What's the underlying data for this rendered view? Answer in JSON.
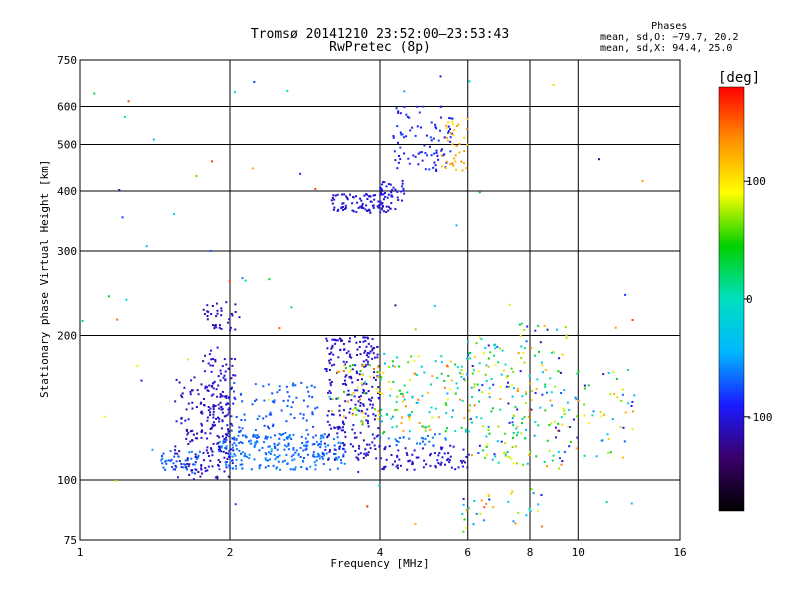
{
  "chart_data": {
    "type": "scatter",
    "title": "Tromsø 20141210 23:52:00–23:53:43",
    "subtitle": "RwPretec (8p)",
    "xlabel": "Frequency [MHz]",
    "ylabel": "Stationary phase Virtual Height [km]",
    "x_scale": "log",
    "y_scale": "log",
    "xlim": [
      1,
      16
    ],
    "ylim": [
      75,
      750
    ],
    "x_ticks": [
      1,
      2,
      4,
      6,
      8,
      10,
      16
    ],
    "y_ticks": [
      75,
      100,
      200,
      300,
      400,
      500,
      600,
      750
    ],
    "grid": true,
    "stats": {
      "header": "Phases",
      "line1": "mean, sd,O: −79.7, 20.2",
      "line2": "mean, sd,X:  94.4, 25.0"
    },
    "colorbar": {
      "label": "[deg]",
      "ticks": [
        100,
        0,
        -100
      ],
      "range": [
        -180,
        180
      ],
      "colors": [
        "#000000",
        "#3a006a",
        "#1a1aff",
        "#00b7ff",
        "#00e0c0",
        "#00d000",
        "#ffff00",
        "#ff9000",
        "#ff0000"
      ]
    },
    "clusters": [
      {
        "x": [
          1.55,
          2.0
        ],
        "y": [
          100,
          165
        ],
        "n": 160,
        "phase": [
          -120,
          -100
        ]
      },
      {
        "x": [
          1.75,
          2.05
        ],
        "y": [
          105,
          190
        ],
        "n": 110,
        "phase": [
          -110,
          -95
        ]
      },
      {
        "x": [
          1.45,
          1.75
        ],
        "y": [
          103,
          115
        ],
        "n": 40,
        "phase": [
          -80,
          -60
        ]
      },
      {
        "x": [
          1.9,
          3.4
        ],
        "y": [
          105,
          125
        ],
        "n": 220,
        "phase": [
          -75,
          -55
        ]
      },
      {
        "x": [
          2.0,
          3.0
        ],
        "y": [
          115,
          160
        ],
        "n": 110,
        "phase": [
          -80,
          -65
        ]
      },
      {
        "x": [
          3.1,
          4.0
        ],
        "y": [
          110,
          200
        ],
        "n": 260,
        "phase": [
          -115,
          -95
        ]
      },
      {
        "x": [
          3.2,
          4.0
        ],
        "y": [
          130,
          175
        ],
        "n": 50,
        "phase": [
          40,
          150
        ]
      },
      {
        "x": [
          1.75,
          2.1
        ],
        "y": [
          205,
          235
        ],
        "n": 35,
        "phase": [
          -120,
          -100
        ]
      },
      {
        "x": [
          3.2,
          4.3
        ],
        "y": [
          360,
          395
        ],
        "n": 90,
        "phase": [
          -110,
          -95
        ]
      },
      {
        "x": [
          4.0,
          4.5
        ],
        "y": [
          380,
          420
        ],
        "n": 35,
        "phase": [
          -105,
          -90
        ]
      },
      {
        "x": [
          4.2,
          5.6
        ],
        "y": [
          440,
          600
        ],
        "n": 90,
        "phase": [
          -100,
          -80
        ]
      },
      {
        "x": [
          5.3,
          6.0
        ],
        "y": [
          440,
          560
        ],
        "n": 35,
        "phase": [
          100,
          140
        ]
      },
      {
        "x": [
          4.0,
          6.0
        ],
        "y": [
          105,
          118
        ],
        "n": 80,
        "phase": [
          -110,
          -95
        ]
      },
      {
        "x": [
          4.0,
          5.5
        ],
        "y": [
          118,
          125
        ],
        "n": 25,
        "phase": [
          -75,
          -55
        ]
      },
      {
        "x": [
          4.0,
          6.2
        ],
        "y": [
          125,
          185
        ],
        "n": 130,
        "phase": [
          -60,
          150
        ]
      },
      {
        "x": [
          6.0,
          7.5
        ],
        "y": [
          108,
          200
        ],
        "n": 110,
        "phase": [
          -110,
          130
        ]
      },
      {
        "x": [
          7.5,
          9.5
        ],
        "y": [
          105,
          215
        ],
        "n": 110,
        "phase": [
          -115,
          140
        ]
      },
      {
        "x": [
          9.5,
          13.0
        ],
        "y": [
          110,
          175
        ],
        "n": 55,
        "phase": [
          -110,
          140
        ]
      },
      {
        "x": [
          5.8,
          8.5
        ],
        "y": [
          78,
          97
        ],
        "n": 35,
        "phase": [
          -100,
          160
        ]
      },
      {
        "x": [
          1.0,
          13.5
        ],
        "y": [
          80,
          700
        ],
        "n": 70,
        "phase": [
          -120,
          170
        ]
      }
    ]
  }
}
